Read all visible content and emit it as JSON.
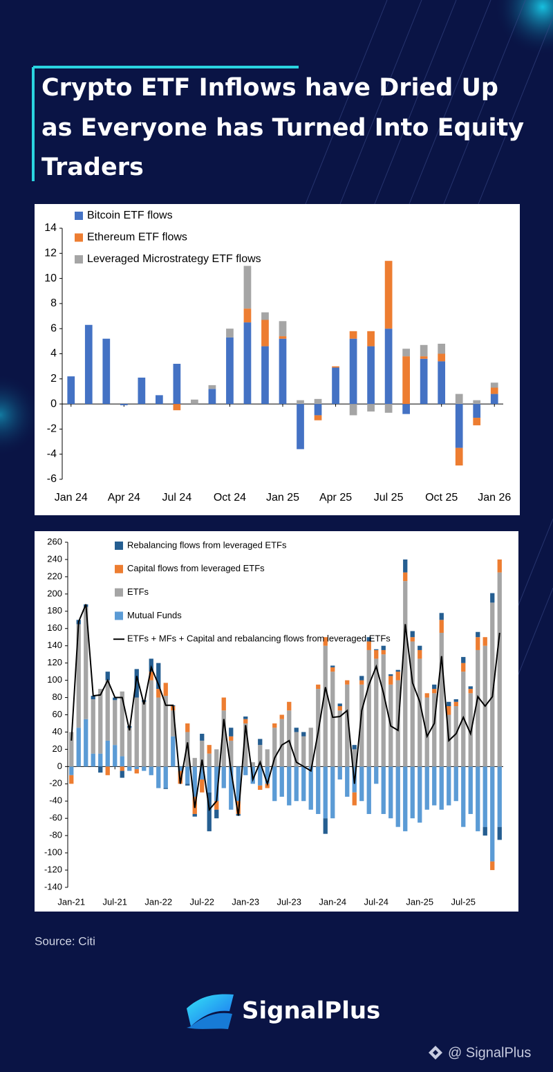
{
  "header": {
    "title_lines": [
      "Crypto ETF Inflows have Dried Up",
      "as Everyone has Turned Into Equity",
      "Traders"
    ]
  },
  "chart_data": [
    {
      "type": "bar",
      "stacked": true,
      "stack_from": "first",
      "legend": "upper left",
      "categories": [
        "Jan 24",
        null,
        null,
        "Apr 24",
        null,
        null,
        "Jul 24",
        null,
        null,
        "Oct 24",
        null,
        null,
        "Jan 25",
        null,
        null,
        "Apr 25",
        null,
        null,
        "Jul 25",
        null,
        null,
        "Oct 25",
        null,
        null,
        "Jan 26"
      ],
      "series": [
        {
          "name": "Bitcoin ETF flows",
          "color": "#4472c4",
          "values": [
            2.2,
            6.3,
            5.2,
            -0.1,
            2.1,
            0.7,
            3.2,
            0,
            1.2,
            5.3,
            6.5,
            4.6,
            5.2,
            -3.6,
            -0.9,
            2.9,
            5.2,
            4.6,
            6.0,
            -0.8,
            3.6,
            3.4,
            -3.5,
            -1.1,
            0.8
          ]
        },
        {
          "name": "Ethereum ETF flows",
          "color": "#ed7d31",
          "values": [
            0,
            0,
            0,
            0,
            0,
            0,
            -0.5,
            0,
            0,
            0,
            1.1,
            2.1,
            0.2,
            0,
            -0.4,
            0.1,
            0.6,
            1.2,
            5.4,
            3.8,
            0.2,
            0.6,
            -1.4,
            -0.6,
            0.5
          ]
        },
        {
          "name": "Leveraged Microstrategy ETF flows",
          "color": "#a5a5a5",
          "values": [
            0,
            0,
            0,
            0,
            0,
            0,
            0,
            0.35,
            0.3,
            0.7,
            3.4,
            0.6,
            1.2,
            0.3,
            0.4,
            0,
            -0.9,
            -0.6,
            -0.7,
            0.6,
            0.9,
            0.8,
            0.8,
            0.3,
            0.4
          ]
        }
      ],
      "ylim": [
        -6,
        14
      ],
      "yticks": [
        -6,
        -4,
        -2,
        0,
        2,
        4,
        6,
        8,
        10,
        12,
        14
      ]
    },
    {
      "type": "bar",
      "stacked": true,
      "stack_from": "last",
      "legend": "upper center",
      "categories": [
        "Jan-21",
        null,
        null,
        null,
        null,
        null,
        "Jul-21",
        null,
        null,
        null,
        null,
        null,
        "Jan-22",
        null,
        null,
        null,
        null,
        null,
        "Jul-22",
        null,
        null,
        null,
        null,
        null,
        "Jan-23",
        null,
        null,
        null,
        null,
        null,
        "Jul-23",
        null,
        null,
        null,
        null,
        null,
        "Jan-24",
        null,
        null,
        null,
        null,
        null,
        "Jul-24",
        null,
        null,
        null,
        null,
        null,
        "Jan-25",
        null,
        null,
        null,
        null,
        null,
        "Jul-25",
        null,
        null,
        null,
        null,
        null
      ],
      "series": [
        {
          "name": "Rebalancing flows from leveraged ETFs",
          "color": "#255e91",
          "values": [
            0,
            5,
            3,
            4,
            -7,
            10,
            3,
            -8,
            2,
            33,
            2,
            15,
            30,
            -1,
            1,
            0,
            -2,
            -3,
            8,
            -45,
            -10,
            0,
            10,
            -2,
            3,
            0,
            7,
            0,
            0,
            0,
            0,
            5,
            5,
            0,
            0,
            -18,
            2,
            3,
            0,
            5,
            5,
            5,
            1,
            5,
            2,
            2,
            15,
            7,
            5,
            0,
            5,
            8,
            5,
            3,
            7,
            3,
            6,
            -10,
            11,
            -15
          ]
        },
        {
          "name": "Capital flows from leveraged ETFs",
          "color": "#ed7d31",
          "values": [
            -10,
            0,
            0,
            0,
            0,
            -10,
            0,
            -5,
            0,
            -5,
            0,
            10,
            10,
            15,
            5,
            -15,
            10,
            -20,
            -15,
            10,
            -10,
            15,
            5,
            -15,
            5,
            0,
            -5,
            -5,
            5,
            5,
            10,
            0,
            0,
            0,
            5,
            10,
            5,
            5,
            5,
            -15,
            5,
            10,
            10,
            5,
            10,
            10,
            10,
            5,
            10,
            5,
            5,
            15,
            10,
            5,
            10,
            5,
            15,
            10,
            -10,
            15
          ]
        },
        {
          "name": "ETFs",
          "color": "#a5a5a5",
          "values": [
            40,
            120,
            130,
            63,
            75,
            70,
            52,
            75,
            45,
            80,
            75,
            100,
            80,
            82,
            30,
            0,
            40,
            10,
            30,
            15,
            20,
            65,
            30,
            0,
            50,
            5,
            25,
            20,
            45,
            55,
            65,
            40,
            35,
            45,
            90,
            140,
            110,
            65,
            95,
            20,
            95,
            135,
            125,
            130,
            95,
            100,
            215,
            145,
            125,
            80,
            85,
            155,
            60,
            70,
            110,
            85,
            135,
            140,
            190,
            225
          ]
        },
        {
          "name": "Mutual Funds",
          "color": "#5b9bd5",
          "values": [
            -10,
            45,
            55,
            15,
            15,
            30,
            25,
            12,
            -5,
            -3,
            -5,
            -10,
            -25,
            -25,
            35,
            -5,
            -20,
            -35,
            -15,
            -30,
            -40,
            -25,
            -50,
            -40,
            -10,
            -20,
            -22,
            -20,
            -40,
            -35,
            -45,
            -40,
            -40,
            -50,
            -55,
            -60,
            -60,
            -15,
            -35,
            -30,
            -40,
            -55,
            -20,
            -55,
            -60,
            -70,
            -75,
            -60,
            -65,
            -50,
            -45,
            -50,
            -45,
            -40,
            -70,
            -55,
            -75,
            -70,
            -110,
            -70
          ]
        },
        {
          "name": "ETFs + MFs + Capital and rebalancing flows from leveraged ETFs",
          "color": "#000000",
          "type": "line",
          "values": [
            30,
            168,
            188,
            82,
            83,
            100,
            80,
            80,
            42,
            105,
            72,
            115,
            95,
            71,
            71,
            -20,
            28,
            -48,
            8,
            -50,
            -40,
            55,
            -5,
            -57,
            48,
            -15,
            5,
            -20,
            10,
            25,
            30,
            5,
            0,
            -5,
            40,
            92,
            57,
            58,
            65,
            -20,
            65,
            95,
            116,
            85,
            47,
            42,
            165,
            97,
            75,
            35,
            50,
            128,
            30,
            38,
            57,
            38,
            81,
            70,
            81,
            155
          ]
        }
      ],
      "ylim": [
        -140,
        260
      ],
      "yticks": [
        -140,
        -120,
        -100,
        -80,
        -60,
        -40,
        -20,
        0,
        20,
        40,
        60,
        80,
        100,
        120,
        140,
        160,
        180,
        200,
        220,
        240,
        260
      ]
    }
  ],
  "source": "Source: Citi",
  "brand": "SignalPlus",
  "watermark": "@ SignalPlus"
}
